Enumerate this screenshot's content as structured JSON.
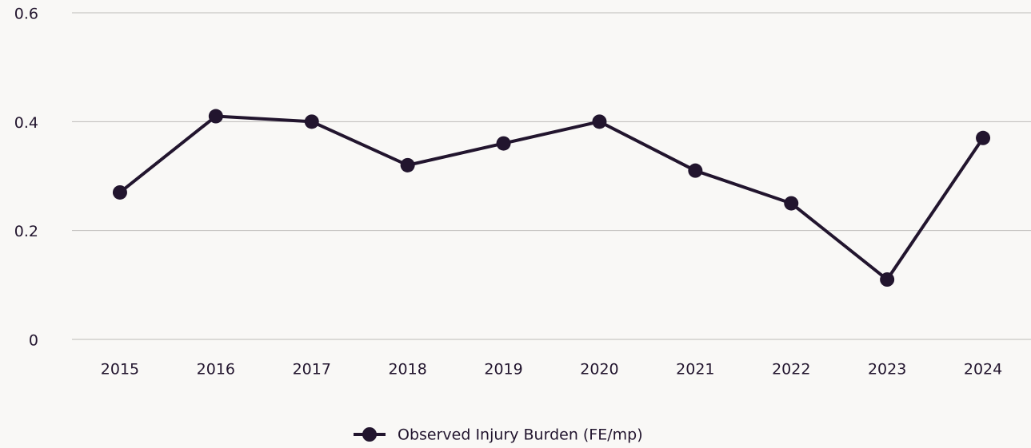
{
  "chart_data": {
    "type": "line",
    "categories": [
      "2015",
      "2016",
      "2017",
      "2018",
      "2019",
      "2020",
      "2021",
      "2022",
      "2023",
      "2024"
    ],
    "series": [
      {
        "name": "Observed Injury Burden (FE/mp)",
        "color": "#22152e",
        "values": [
          0.27,
          0.41,
          0.4,
          0.32,
          0.36,
          0.4,
          0.31,
          0.25,
          0.11,
          0.37
        ]
      }
    ],
    "ylim": [
      0,
      0.6
    ],
    "yticks": [
      0,
      0.2,
      0.4,
      0.6
    ],
    "grid": true,
    "legend": "bottom"
  }
}
